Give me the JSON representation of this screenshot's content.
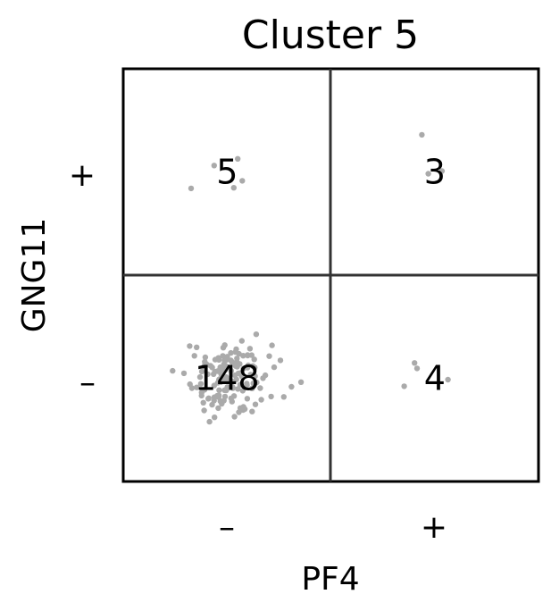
{
  "chart_data": {
    "type": "scatter",
    "title": "Cluster 5",
    "xlabel": "PF4",
    "ylabel": "GNG11",
    "x_ticks": [
      "–",
      "+"
    ],
    "y_ticks": [
      "+",
      "–"
    ],
    "grid": true,
    "point_color": "#aaaaaa",
    "quadrants": [
      {
        "x": "–",
        "y": "+",
        "count": "5"
      },
      {
        "x": "+",
        "y": "+",
        "count": "3"
      },
      {
        "x": "–",
        "y": "–",
        "count": "148"
      },
      {
        "x": "+",
        "y": "–",
        "count": "4"
      }
    ]
  }
}
